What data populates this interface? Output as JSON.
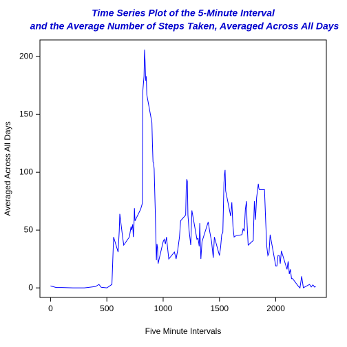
{
  "chart_data": {
    "type": "line",
    "title": [
      "Time Series Plot of the 5-Minute Interval",
      "and the Average Number of Steps Taken, Averaged Across All Days"
    ],
    "x_label": "Five Minute Intervals",
    "y_label": "Averaged Across All Days",
    "x": [
      0,
      50,
      100,
      200,
      300,
      400,
      430,
      450,
      500,
      530,
      545,
      560,
      600,
      610,
      615,
      630,
      640,
      650,
      700,
      715,
      720,
      730,
      735,
      740,
      745,
      750,
      800,
      815,
      820,
      830,
      835,
      840,
      845,
      850,
      855,
      900,
      905,
      910,
      915,
      920,
      930,
      935,
      940,
      945,
      950,
      955,
      1000,
      1010,
      1020,
      1030,
      1040,
      1050,
      1100,
      1115,
      1130,
      1145,
      1155,
      1200,
      1205,
      1210,
      1215,
      1220,
      1230,
      1245,
      1255,
      1300,
      1310,
      1320,
      1325,
      1335,
      1345,
      1400,
      1415,
      1430,
      1445,
      1455,
      1500,
      1510,
      1520,
      1530,
      1540,
      1545,
      1550,
      1555,
      1600,
      1610,
      1620,
      1630,
      1645,
      1700,
      1710,
      1720,
      1730,
      1740,
      1745,
      1755,
      1800,
      1810,
      1820,
      1830,
      1845,
      1850,
      1855,
      1900,
      1910,
      1920,
      1930,
      1940,
      1950,
      2000,
      2010,
      2020,
      2030,
      2040,
      2050,
      2100,
      2110,
      2115,
      2120,
      2130,
      2140,
      2150,
      2200,
      2215,
      2230,
      2245,
      2300,
      2315,
      2330,
      2345,
      2355
    ],
    "series": [
      {
        "name": "steps",
        "color": "#0000ff",
        "values": [
          1.7,
          0.3,
          0.3,
          0,
          0,
          1.2,
          3,
          0.5,
          0,
          2,
          3,
          44,
          31,
          49,
          64,
          52,
          44,
          37,
          44,
          53,
          50,
          55,
          44,
          52,
          69,
          58,
          68,
          73,
          171,
          183,
          206,
          195,
          179,
          183,
          167,
          143,
          124,
          109,
          108,
          103,
          66,
          45,
          24,
          38,
          35,
          21,
          40,
          42,
          38,
          44,
          34,
          25,
          31,
          25,
          33,
          44,
          58,
          63,
          87,
          94,
          92,
          63,
          50,
          37,
          67,
          42,
          43,
          36,
          56,
          25,
          40,
          57,
          48,
          40,
          26,
          44,
          28,
          35,
          46,
          48,
          91,
          98,
          102,
          84,
          62,
          74,
          53,
          44,
          45,
          46,
          51,
          49,
          68,
          75,
          56,
          37,
          41,
          75,
          59,
          78,
          90,
          86,
          85,
          85,
          59,
          36,
          28,
          30,
          46,
          19,
          19,
          28,
          28,
          21,
          32,
          16,
          23,
          19,
          12,
          16,
          8,
          8,
          1.5,
          0,
          10,
          0.1,
          3,
          0.8,
          2.6,
          0.7,
          1.1
        ]
      }
    ],
    "xlim": [
      -94.2,
      2449.2
    ],
    "xticks": [
      0,
      500,
      1000,
      1500,
      2000
    ],
    "ylim": [
      -8.25,
      214.42
    ],
    "yticks": [
      0,
      50,
      100,
      150,
      200
    ]
  }
}
